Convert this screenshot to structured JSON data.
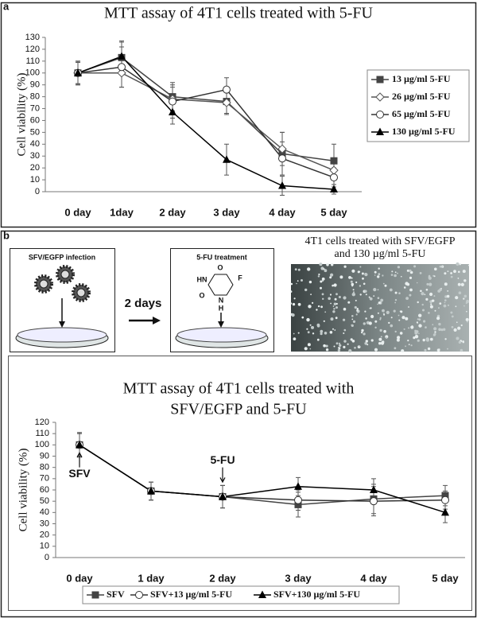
{
  "panel_labels": [
    "a",
    "b"
  ],
  "diagram": {
    "step1": "SFV/EGFP infection",
    "interval": "2 days",
    "step2": "5-FU treatment",
    "molecule_atoms": [
      "O",
      "HN",
      "F",
      "O",
      "N",
      "H"
    ],
    "image_caption": [
      "4T1 cells treated with SFV/EGFP",
      "and 130 µg/ml 5-FU"
    ]
  },
  "chart_data": [
    {
      "type": "line",
      "title": [
        "MTT assay of 4T1 cells treated with 5-FU"
      ],
      "y_label": "Cell viability (%)",
      "categories": [
        "0 day",
        "1day",
        "2 day",
        "3 day",
        "4 day",
        "5 day"
      ],
      "ylim": [
        0,
        130
      ],
      "yticks": [
        0,
        10,
        20,
        30,
        40,
        50,
        60,
        70,
        80,
        90,
        100,
        110,
        120,
        130
      ],
      "grid": false,
      "legend": "right",
      "series": [
        {
          "name": "13 µg/ml 5-FU",
          "color": "#444444",
          "marker": "square",
          "values": [
            100,
            113,
            80,
            76,
            32,
            26
          ],
          "errors": [
            10,
            14,
            12,
            10,
            18,
            14
          ]
        },
        {
          "name": "26 µg/ml 5-FU",
          "color": "#555555",
          "marker": "diamond-open",
          "values": [
            100,
            100,
            78,
            75,
            36,
            18
          ],
          "errors": [
            9,
            12,
            10,
            10,
            14,
            8
          ]
        },
        {
          "name": "65 µg/ml 5-FU",
          "color": "#333333",
          "marker": "circle-open",
          "values": [
            100,
            105,
            76,
            86,
            28,
            12
          ],
          "errors": [
            9,
            17,
            14,
            10,
            14,
            8
          ]
        },
        {
          "name": "130 µg/ml 5-FU",
          "color": "#000000",
          "marker": "triangle",
          "values": [
            100,
            114,
            67,
            27,
            5,
            2
          ],
          "errors": [
            10,
            12,
            10,
            13,
            8,
            4
          ]
        }
      ]
    },
    {
      "type": "line",
      "title": [
        "MTT assay of 4T1 cells treated with",
        "SFV/EGFP and 5-FU"
      ],
      "y_label": "Cell viability (%)",
      "categories": [
        "0 day",
        "1 day",
        "2 day",
        "3 day",
        "4 day",
        "5 day"
      ],
      "ylim": [
        0,
        120
      ],
      "yticks": [
        0,
        10,
        20,
        30,
        40,
        50,
        60,
        70,
        80,
        90,
        100,
        110,
        120
      ],
      "grid": false,
      "legend": "bottom",
      "annotations": [
        "SFV",
        "5-FU"
      ],
      "series": [
        {
          "name": "SFV",
          "color": "#444444",
          "marker": "square",
          "values": [
            100,
            59,
            54,
            47,
            52,
            55
          ],
          "errors": [
            11,
            8,
            10,
            11,
            13,
            9
          ]
        },
        {
          "name": "SFV+13 µg/ml 5-FU",
          "color": "#333333",
          "marker": "circle-open",
          "values": [
            100,
            59,
            54,
            51,
            50,
            51
          ],
          "errors": [
            10,
            8,
            10,
            9,
            13,
            8
          ]
        },
        {
          "name": "SFV+130 µg/ml 5-FU",
          "color": "#000000",
          "marker": "triangle",
          "values": [
            100,
            59,
            54,
            63,
            60,
            40
          ],
          "errors": [
            10,
            8,
            10,
            8,
            10,
            9
          ]
        }
      ]
    }
  ]
}
